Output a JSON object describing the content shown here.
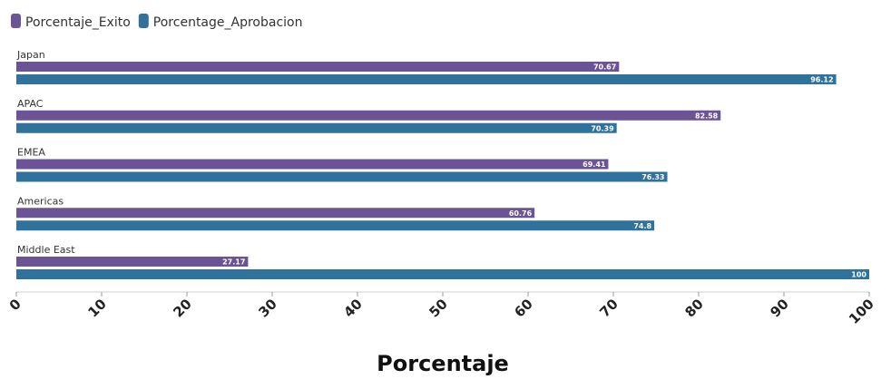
{
  "chart_data": {
    "type": "bar",
    "orientation": "horizontal",
    "categories": [
      "Japan",
      "APAC",
      "EMEA",
      "Americas",
      "Middle East"
    ],
    "series": [
      {
        "name": "Porcentaje_Exito",
        "color": "#6b5496",
        "values": [
          70.67,
          82.58,
          69.41,
          60.76,
          27.17
        ]
      },
      {
        "name": "Porcentage_Aprobacion",
        "color": "#2f729c",
        "values": [
          96.12,
          70.39,
          76.33,
          74.8,
          100
        ]
      }
    ],
    "xlabel": "Porcentaje",
    "xlim": [
      0,
      100
    ],
    "xticks": [
      0,
      10,
      20,
      30,
      40,
      50,
      60,
      70,
      80,
      90,
      100
    ],
    "legend_position": "top-left",
    "data_labels": true,
    "grid": false
  }
}
